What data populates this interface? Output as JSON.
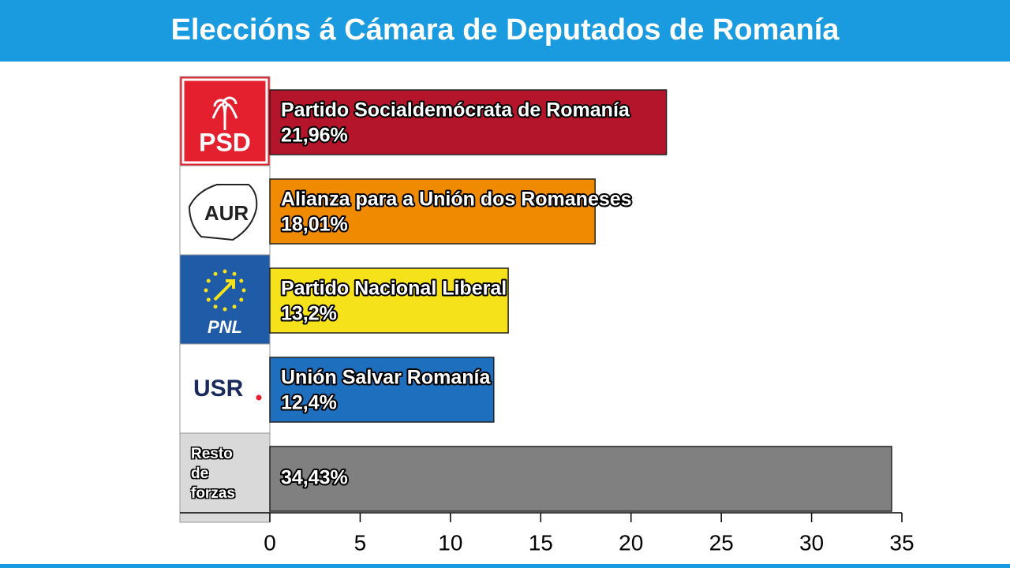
{
  "chart_data": {
    "type": "bar",
    "orientation": "horizontal",
    "title": "Eleccións á Cámara de Deputados de Romanía",
    "categories": [
      "Partido Socialdemócrata de Romanía",
      "Alianza para a Unión dos Romaneses",
      "Partido Nacional Liberal",
      "Unión Salvar Romanía",
      "Resto de forzas"
    ],
    "logos": [
      "PSD",
      "AUR",
      "PNL",
      "USR"
    ],
    "values": [
      21.96,
      18.01,
      13.2,
      12.4,
      34.43
    ],
    "value_labels": [
      "21,96%",
      "18,01%",
      "13,2%",
      "12,4%",
      "34,43%"
    ],
    "colors": [
      "#b5152b",
      "#f08a00",
      "#f5e21a",
      "#1f6fbf",
      "#808080"
    ],
    "xlim": [
      0,
      35
    ],
    "xticks": [
      0,
      5,
      10,
      15,
      20,
      25,
      30,
      35
    ],
    "grid": false
  }
}
